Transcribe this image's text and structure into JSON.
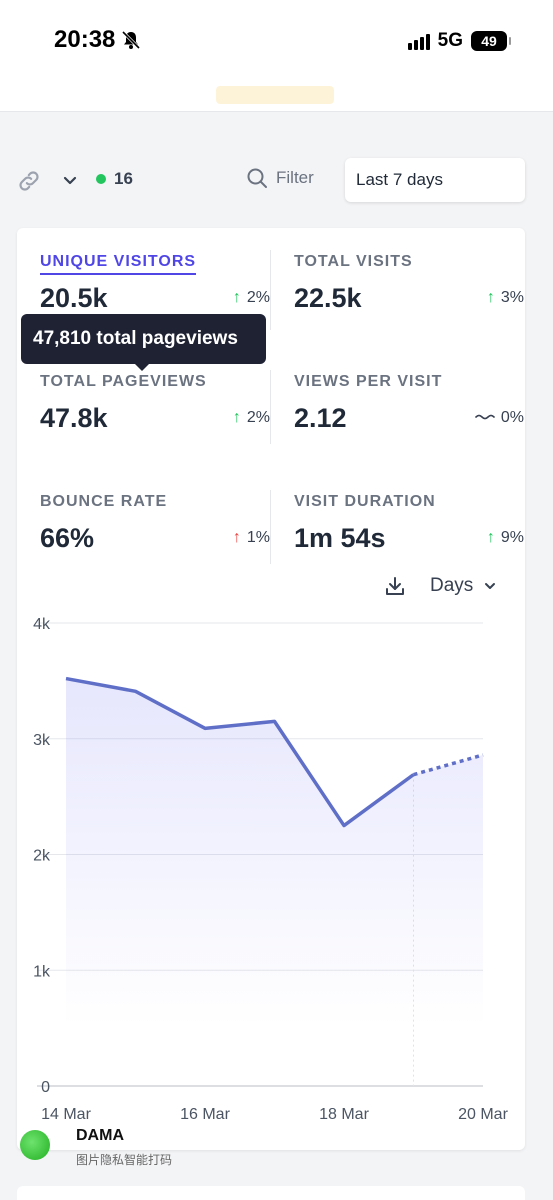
{
  "status_bar": {
    "time": "20:38",
    "network": "5G",
    "battery": "49"
  },
  "toolbar": {
    "online_count": "16",
    "filter_label": "Filter",
    "period_label": "Last 7 days"
  },
  "metrics": [
    {
      "label": "UNIQUE VISITORS",
      "value": "20.5k",
      "change": "2%",
      "direction": "up"
    },
    {
      "label": "TOTAL VISITS",
      "value": "22.5k",
      "change": "3%",
      "direction": "up"
    },
    {
      "label": "TOTAL PAGEVIEWS",
      "value": "47.8k",
      "change": "2%",
      "direction": "up"
    },
    {
      "label": "VIEWS PER VISIT",
      "value": "2.12",
      "change": "0%",
      "direction": "flat"
    },
    {
      "label": "BOUNCE RATE",
      "value": "66%",
      "change": "1%",
      "direction": "up-bad"
    },
    {
      "label": "VISIT DURATION",
      "value": "1m 54s",
      "change": "9%",
      "direction": "up"
    }
  ],
  "tooltip": "47,810 total pageviews",
  "chart_controls": {
    "interval": "Days"
  },
  "chart_data": {
    "type": "line",
    "x": [
      "14 Mar",
      "15 Mar",
      "16 Mar",
      "17 Mar",
      "18 Mar",
      "19 Mar",
      "20 Mar"
    ],
    "x_tick_labels": [
      "14 Mar",
      "16 Mar",
      "18 Mar",
      "20 Mar"
    ],
    "y_tick_labels": [
      "0",
      "1k",
      "2k",
      "3k",
      "4k"
    ],
    "series": [
      {
        "values": [
          3520,
          3410,
          3090,
          3150,
          2250,
          2690,
          2860
        ],
        "dashed_from_index": 5
      }
    ],
    "ylim": [
      0,
      4000
    ],
    "grid": true,
    "line_color": "#5f6fc8"
  },
  "watermark": {
    "title": "DAMA",
    "subtitle": "图片隐私智能打码"
  }
}
